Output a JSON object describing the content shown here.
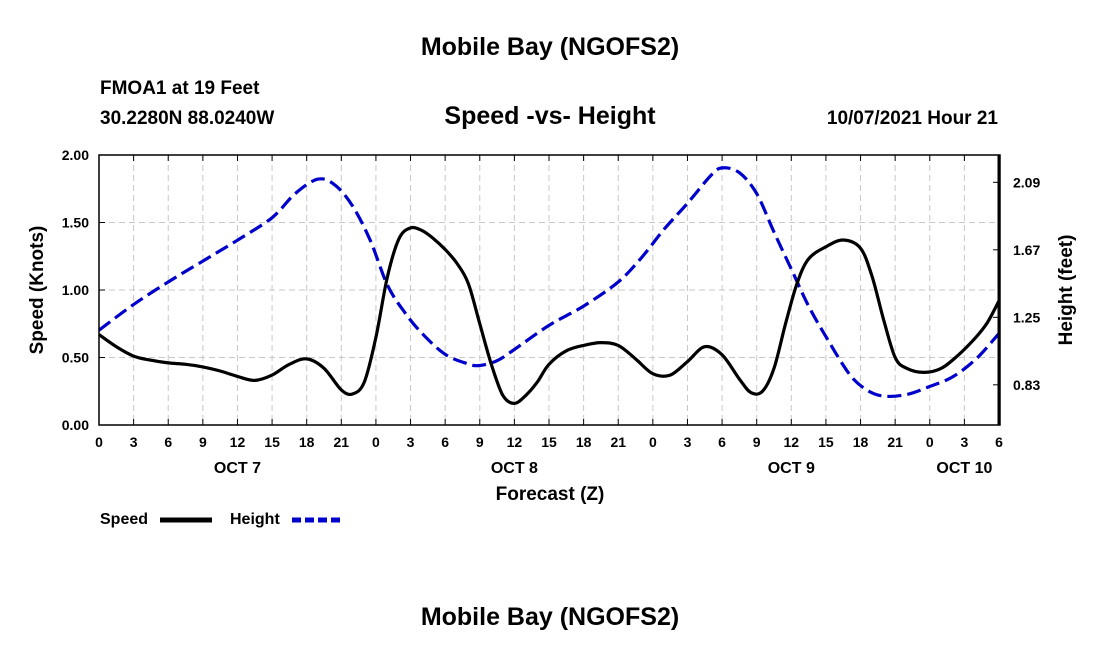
{
  "chart_data": {
    "type": "line",
    "title": "Mobile Bay (NGOFS2)",
    "footer_title": "Mobile Bay (NGOFS2)",
    "station": "FMOA1 at 19 Feet",
    "coordinates": "30.2280N  88.0240W",
    "subtitle": "Speed -vs- Height",
    "timestamp": "10/07/2021 Hour 21",
    "xlabel": "Forecast (Z)",
    "ylabel_left": "Speed (Knots)",
    "ylabel_right": "Height (feet)",
    "x_range": [
      0,
      78
    ],
    "x_ticks": [
      {
        "x": 0,
        "label": "0"
      },
      {
        "x": 3,
        "label": "3"
      },
      {
        "x": 6,
        "label": "6"
      },
      {
        "x": 9,
        "label": "9"
      },
      {
        "x": 12,
        "label": "12"
      },
      {
        "x": 15,
        "label": "15"
      },
      {
        "x": 18,
        "label": "18"
      },
      {
        "x": 21,
        "label": "21"
      },
      {
        "x": 24,
        "label": "0"
      },
      {
        "x": 27,
        "label": "3"
      },
      {
        "x": 30,
        "label": "6"
      },
      {
        "x": 33,
        "label": "9"
      },
      {
        "x": 36,
        "label": "12"
      },
      {
        "x": 39,
        "label": "15"
      },
      {
        "x": 42,
        "label": "18"
      },
      {
        "x": 45,
        "label": "21"
      },
      {
        "x": 48,
        "label": "0"
      },
      {
        "x": 51,
        "label": "3"
      },
      {
        "x": 54,
        "label": "6"
      },
      {
        "x": 57,
        "label": "9"
      },
      {
        "x": 60,
        "label": "12"
      },
      {
        "x": 63,
        "label": "15"
      },
      {
        "x": 66,
        "label": "18"
      },
      {
        "x": 69,
        "label": "21"
      },
      {
        "x": 72,
        "label": "0"
      },
      {
        "x": 75,
        "label": "3"
      },
      {
        "x": 78,
        "label": "6"
      }
    ],
    "day_labels": [
      {
        "x": 12,
        "label": "OCT 7"
      },
      {
        "x": 36,
        "label": "OCT 8"
      },
      {
        "x": 60,
        "label": "OCT 9"
      },
      {
        "x": 75,
        "label": "OCT 10"
      }
    ],
    "y_left": {
      "min": 0.0,
      "max": 2.0,
      "ticks": [
        "0.00",
        "0.50",
        "1.00",
        "1.50",
        "2.00"
      ]
    },
    "y_right": {
      "min": 0.58,
      "max": 2.26,
      "ticks": [
        "0.83",
        "1.25",
        "1.67",
        "2.09"
      ]
    },
    "grid": true,
    "series": [
      {
        "name": "Speed",
        "axis": "left",
        "color": "#000000",
        "dash": "solid",
        "points": [
          [
            0,
            0.67
          ],
          [
            1.5,
            0.58
          ],
          [
            3,
            0.51
          ],
          [
            4.5,
            0.48
          ],
          [
            6,
            0.46
          ],
          [
            7.5,
            0.45
          ],
          [
            9,
            0.43
          ],
          [
            10.5,
            0.4
          ],
          [
            12,
            0.36
          ],
          [
            13.5,
            0.33
          ],
          [
            15,
            0.37
          ],
          [
            16.5,
            0.45
          ],
          [
            18,
            0.49
          ],
          [
            19.5,
            0.42
          ],
          [
            21,
            0.26
          ],
          [
            22,
            0.23
          ],
          [
            23,
            0.32
          ],
          [
            24,
            0.65
          ],
          [
            25,
            1.1
          ],
          [
            26,
            1.38
          ],
          [
            27,
            1.46
          ],
          [
            28,
            1.44
          ],
          [
            29,
            1.38
          ],
          [
            30,
            1.3
          ],
          [
            31,
            1.2
          ],
          [
            32,
            1.05
          ],
          [
            33,
            0.75
          ],
          [
            34,
            0.45
          ],
          [
            35,
            0.22
          ],
          [
            36,
            0.16
          ],
          [
            37,
            0.22
          ],
          [
            38,
            0.32
          ],
          [
            39,
            0.45
          ],
          [
            40.5,
            0.55
          ],
          [
            42,
            0.59
          ],
          [
            43.5,
            0.61
          ],
          [
            45,
            0.59
          ],
          [
            46.5,
            0.49
          ],
          [
            48,
            0.38
          ],
          [
            49.5,
            0.37
          ],
          [
            51,
            0.47
          ],
          [
            52.5,
            0.58
          ],
          [
            54,
            0.52
          ],
          [
            55.5,
            0.34
          ],
          [
            56.5,
            0.24
          ],
          [
            57.5,
            0.25
          ],
          [
            58.5,
            0.42
          ],
          [
            59.5,
            0.75
          ],
          [
            60.5,
            1.05
          ],
          [
            61.5,
            1.23
          ],
          [
            63,
            1.32
          ],
          [
            64.5,
            1.37
          ],
          [
            66,
            1.31
          ],
          [
            67,
            1.1
          ],
          [
            68,
            0.78
          ],
          [
            69,
            0.5
          ],
          [
            70,
            0.42
          ],
          [
            71.5,
            0.39
          ],
          [
            73,
            0.42
          ],
          [
            74.5,
            0.52
          ],
          [
            76,
            0.65
          ],
          [
            77,
            0.76
          ],
          [
            78,
            0.92
          ]
        ]
      },
      {
        "name": "Height",
        "axis": "right",
        "color": "#0000cc",
        "dash": "dashed",
        "points": [
          [
            0,
            1.17
          ],
          [
            3,
            1.33
          ],
          [
            6,
            1.47
          ],
          [
            9,
            1.6
          ],
          [
            12,
            1.73
          ],
          [
            15,
            1.87
          ],
          [
            17,
            2.02
          ],
          [
            19,
            2.11
          ],
          [
            20.5,
            2.07
          ],
          [
            22,
            1.94
          ],
          [
            23.5,
            1.73
          ],
          [
            25,
            1.45
          ],
          [
            26.5,
            1.28
          ],
          [
            28,
            1.15
          ],
          [
            30,
            1.02
          ],
          [
            32,
            0.96
          ],
          [
            33,
            0.95
          ],
          [
            34.5,
            0.98
          ],
          [
            36,
            1.05
          ],
          [
            39,
            1.2
          ],
          [
            42,
            1.32
          ],
          [
            45,
            1.47
          ],
          [
            47,
            1.62
          ],
          [
            49,
            1.8
          ],
          [
            51,
            1.96
          ],
          [
            53,
            2.13
          ],
          [
            54,
            2.18
          ],
          [
            55.5,
            2.15
          ],
          [
            57,
            2.02
          ],
          [
            58.5,
            1.78
          ],
          [
            60,
            1.55
          ],
          [
            61.5,
            1.32
          ],
          [
            63,
            1.13
          ],
          [
            65,
            0.9
          ],
          [
            66.5,
            0.8
          ],
          [
            68,
            0.76
          ],
          [
            70,
            0.77
          ],
          [
            72,
            0.82
          ],
          [
            74,
            0.88
          ],
          [
            76,
            0.99
          ],
          [
            78,
            1.15
          ]
        ]
      }
    ]
  },
  "legend": [
    {
      "label": "Speed",
      "color": "#000000",
      "dash": "solid"
    },
    {
      "label": "Height",
      "color": "#0000cc",
      "dash": "dashed"
    }
  ]
}
